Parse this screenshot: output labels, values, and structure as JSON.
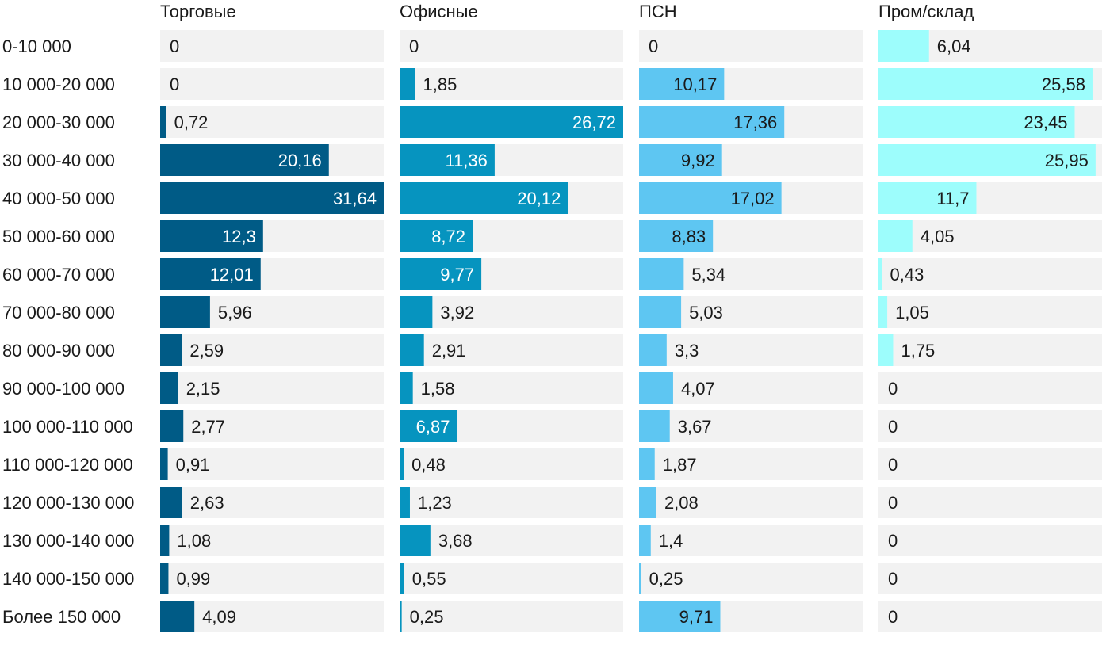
{
  "chart_data": {
    "type": "bar",
    "orientation": "horizontal",
    "layout": "small-multiples",
    "grid": false,
    "legend": "none",
    "categories": [
      "0-10 000",
      "10 000-20 000",
      "20 000-30 000",
      "30 000-40 000",
      "40 000-50 000",
      "50 000-60 000",
      "60 000-70 000",
      "70 000-80 000",
      "80 000-90 000",
      "90 000-100 000",
      "100 000-110 000",
      "110 000-120 000",
      "120 000-130 000",
      "130 000-140 000",
      "140 000-150 000",
      "Более 150 000"
    ],
    "series": [
      {
        "name": "Торговые",
        "color": "#005b86",
        "values": [
          "0",
          "0",
          "0,72",
          "20,16",
          "31,64",
          "12,3",
          "12,01",
          "5,96",
          "2,59",
          "2,15",
          "2,77",
          "0,91",
          "2,63",
          "1,08",
          "0,99",
          "4,09"
        ]
      },
      {
        "name": "Офисные",
        "color": "#0694bf",
        "values": [
          "0",
          "1,85",
          "26,72",
          "11,36",
          "20,12",
          "8,72",
          "9,77",
          "3,92",
          "2,91",
          "1,58",
          "6,87",
          "0,48",
          "1,23",
          "3,68",
          "0,55",
          "0,25"
        ]
      },
      {
        "name": "ПСН",
        "color": "#5ec6f2",
        "values": [
          "0",
          "10,17",
          "17,36",
          "9,92",
          "17,02",
          "8,83",
          "5,34",
          "5,03",
          "3,3",
          "4,07",
          "3,67",
          "1,87",
          "2,08",
          "1,4",
          "0,25",
          "9,71"
        ]
      },
      {
        "name": "Пром/склад",
        "color": "#9dfdfc",
        "values": [
          "6,04",
          "25,58",
          "23,45",
          "25,95",
          "11,7",
          "4,05",
          "0,43",
          "1,05",
          "1,75",
          "0",
          "0",
          "0",
          "0",
          "0",
          "0",
          "0"
        ]
      }
    ],
    "xlim": [
      0,
      26.72
    ],
    "track_color": "#f2f2f2"
  }
}
